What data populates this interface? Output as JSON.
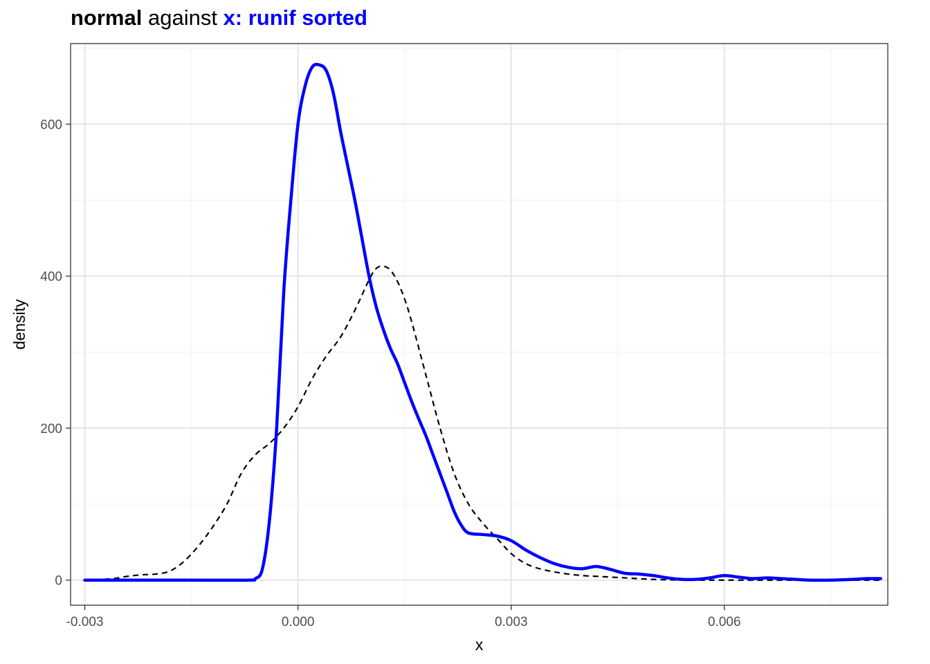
{
  "chart_data": {
    "type": "line",
    "title_parts": {
      "bold": "normal",
      "plain": " against ",
      "highlight": "x: runif sorted"
    },
    "xlabel": "x",
    "ylabel": "density",
    "xlim": [
      -0.0032,
      0.0083
    ],
    "ylim": [
      -33,
      706
    ],
    "x_ticks": [
      {
        "value": -0.003,
        "label": "-0.003"
      },
      {
        "value": 0.0,
        "label": "0.000"
      },
      {
        "value": 0.003,
        "label": "0.003"
      },
      {
        "value": 0.006,
        "label": "0.006"
      }
    ],
    "x_minor": [
      -0.0015,
      0.0015,
      0.0045,
      0.0075
    ],
    "y_ticks": [
      {
        "value": 0,
        "label": "0"
      },
      {
        "value": 200,
        "label": "200"
      },
      {
        "value": 400,
        "label": "400"
      },
      {
        "value": 600,
        "label": "600"
      }
    ],
    "y_minor": [
      100,
      300,
      500,
      700
    ],
    "grid": true,
    "series": [
      {
        "style": "solid",
        "color": "#0000ff",
        "points": [
          [
            -0.003,
            0
          ],
          [
            -0.0015,
            0
          ],
          [
            -0.0007,
            0
          ],
          [
            -0.0006,
            2
          ],
          [
            -0.0005,
            15
          ],
          [
            -0.0004,
            80
          ],
          [
            -0.0003,
            200
          ],
          [
            -0.0002,
            380
          ],
          [
            -0.0001,
            500
          ],
          [
            0.0,
            600
          ],
          [
            0.0001,
            650
          ],
          [
            0.0002,
            675
          ],
          [
            0.0003,
            678
          ],
          [
            0.0004,
            670
          ],
          [
            0.0005,
            640
          ],
          [
            0.0006,
            590
          ],
          [
            0.0007,
            545
          ],
          [
            0.0008,
            500
          ],
          [
            0.0009,
            450
          ],
          [
            0.001,
            400
          ],
          [
            0.0011,
            360
          ],
          [
            0.0012,
            330
          ],
          [
            0.0013,
            305
          ],
          [
            0.0014,
            285
          ],
          [
            0.0015,
            260
          ],
          [
            0.0016,
            235
          ],
          [
            0.0017,
            212
          ],
          [
            0.0018,
            190
          ],
          [
            0.0019,
            165
          ],
          [
            0.002,
            140
          ],
          [
            0.0021,
            115
          ],
          [
            0.0022,
            90
          ],
          [
            0.0023,
            72
          ],
          [
            0.0024,
            62
          ],
          [
            0.0026,
            60
          ],
          [
            0.0028,
            58
          ],
          [
            0.003,
            52
          ],
          [
            0.0032,
            40
          ],
          [
            0.0034,
            30
          ],
          [
            0.0036,
            22
          ],
          [
            0.0038,
            17
          ],
          [
            0.004,
            15
          ],
          [
            0.0042,
            18
          ],
          [
            0.0044,
            14
          ],
          [
            0.0046,
            9
          ],
          [
            0.0048,
            8
          ],
          [
            0.005,
            6
          ],
          [
            0.0052,
            3
          ],
          [
            0.0054,
            1
          ],
          [
            0.0056,
            1
          ],
          [
            0.0058,
            3
          ],
          [
            0.006,
            6
          ],
          [
            0.0062,
            4
          ],
          [
            0.0064,
            2
          ],
          [
            0.0066,
            3
          ],
          [
            0.0068,
            2
          ],
          [
            0.007,
            1
          ],
          [
            0.0072,
            0
          ],
          [
            0.0075,
            0
          ],
          [
            0.0078,
            1
          ],
          [
            0.008,
            2
          ],
          [
            0.0082,
            2
          ]
        ]
      },
      {
        "style": "dashed",
        "color": "#000000",
        "points": [
          [
            -0.003,
            1
          ],
          [
            -0.0028,
            1
          ],
          [
            -0.0026,
            2
          ],
          [
            -0.0024,
            5
          ],
          [
            -0.0022,
            7
          ],
          [
            -0.002,
            8
          ],
          [
            -0.0018,
            12
          ],
          [
            -0.0016,
            25
          ],
          [
            -0.0014,
            45
          ],
          [
            -0.0012,
            70
          ],
          [
            -0.001,
            100
          ],
          [
            -0.0008,
            140
          ],
          [
            -0.0006,
            165
          ],
          [
            -0.0004,
            180
          ],
          [
            -0.0002,
            200
          ],
          [
            0.0,
            228
          ],
          [
            0.0002,
            265
          ],
          [
            0.0004,
            295
          ],
          [
            0.0006,
            320
          ],
          [
            0.0008,
            355
          ],
          [
            0.001,
            395
          ],
          [
            0.0011,
            410
          ],
          [
            0.0012,
            413
          ],
          [
            0.0013,
            408
          ],
          [
            0.0014,
            393
          ],
          [
            0.0015,
            370
          ],
          [
            0.0016,
            340
          ],
          [
            0.0018,
            270
          ],
          [
            0.002,
            200
          ],
          [
            0.0022,
            140
          ],
          [
            0.0024,
            100
          ],
          [
            0.0026,
            75
          ],
          [
            0.0028,
            55
          ],
          [
            0.003,
            35
          ],
          [
            0.0032,
            22
          ],
          [
            0.0034,
            15
          ],
          [
            0.0036,
            11
          ],
          [
            0.0038,
            8
          ],
          [
            0.004,
            6
          ],
          [
            0.0042,
            5
          ],
          [
            0.0044,
            4
          ],
          [
            0.0046,
            3
          ],
          [
            0.005,
            1
          ],
          [
            0.0055,
            0
          ],
          [
            0.006,
            0
          ],
          [
            0.0065,
            0
          ],
          [
            0.007,
            0
          ],
          [
            0.0075,
            0
          ],
          [
            0.008,
            0
          ],
          [
            0.0082,
            0
          ]
        ]
      }
    ]
  },
  "colors": {
    "highlight": "#0000ff",
    "grid_major": "#e5e5e5",
    "grid_minor": "#f0f0f0",
    "panel_border": "#333333",
    "tick_text": "#4d4d4d"
  }
}
